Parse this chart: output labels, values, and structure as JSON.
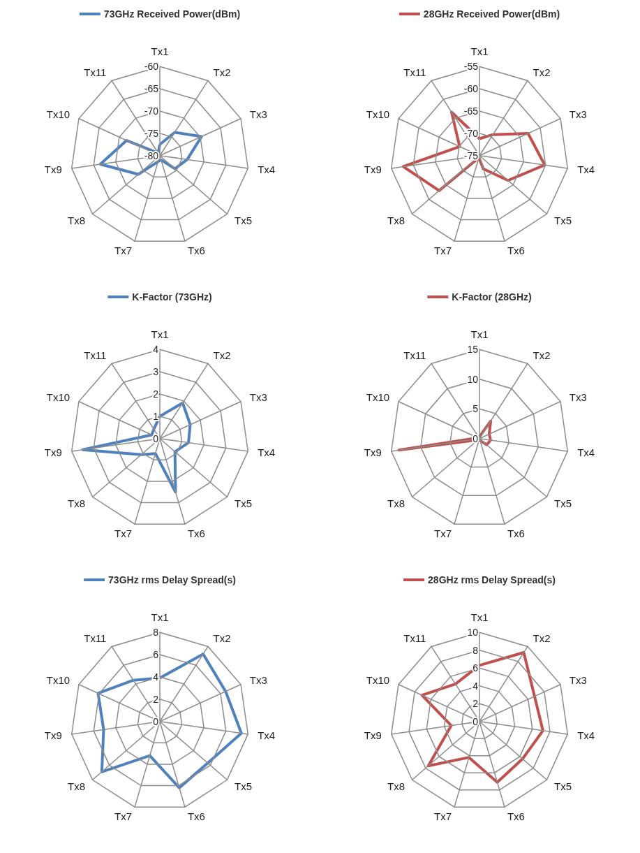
{
  "chart_data": [
    {
      "type": "radar",
      "categories": [
        "Tx1",
        "Tx2",
        "Tx3",
        "Tx4",
        "Tx5",
        "Tx6",
        "Tx7",
        "Tx8",
        "Tx9",
        "Tx10",
        "Tx11"
      ],
      "series": [
        {
          "name": "73GHz Received Power(dBm)",
          "color": "#4f81bd",
          "values": [
            -77.5,
            -73.8,
            -69.7,
            -73.8,
            -75.5,
            -79,
            -78.6,
            -73.6,
            -66.5,
            -71.8,
            -79.3
          ]
        }
      ],
      "ylim": [
        -80,
        -60
      ],
      "yticks": [
        -80,
        -75,
        -70,
        -65,
        -60
      ],
      "grid": true,
      "legend": "top",
      "marker": "none"
    },
    {
      "type": "radar",
      "categories": [
        "Tx1",
        "Tx2",
        "Tx3",
        "Tx4",
        "Tx5",
        "Tx6",
        "Tx7",
        "Tx8",
        "Tx9",
        "Tx10",
        "Tx11"
      ],
      "series": [
        {
          "name": "28GHz Received Power(dBm)",
          "color": "#c0504d",
          "values": [
            -71.2,
            -69.4,
            -63,
            -60.2,
            -66.5,
            -71.9,
            -74.5,
            -63,
            -57.7,
            -70.1,
            -63.4
          ]
        }
      ],
      "ylim": [
        -75,
        -55
      ],
      "yticks": [
        -75,
        -70,
        -65,
        -60,
        -55
      ],
      "grid": true,
      "legend": "top",
      "marker": "none"
    },
    {
      "type": "radar",
      "categories": [
        "Tx1",
        "Tx2",
        "Tx3",
        "Tx4",
        "Tx5",
        "Tx6",
        "Tx7",
        "Tx8",
        "Tx9",
        "Tx10",
        "Tx11"
      ],
      "series": [
        {
          "name": "K-Factor (73GHz)",
          "color": "#4f81bd",
          "values": [
            1,
            1.9,
            1.5,
            1.3,
            0.9,
            2.5,
            0.7,
            1.1,
            3.5,
            0.4,
            0.5
          ]
        }
      ],
      "ylim": [
        0,
        4
      ],
      "yticks": [
        0,
        1,
        2,
        3,
        4
      ],
      "grid": true,
      "legend": "top",
      "marker": "none"
    },
    {
      "type": "radar",
      "categories": [
        "Tx1",
        "Tx2",
        "Tx3",
        "Tx4",
        "Tx5",
        "Tx6",
        "Tx7",
        "Tx8",
        "Tx9",
        "Tx10",
        "Tx11"
      ],
      "series": [
        {
          "name": "K-Factor (28GHz)",
          "color": "#c0504d",
          "values": [
            0.3,
            3.5,
            1.8,
            1.9,
            1.6,
            0.3,
            0.3,
            0.3,
            13.7,
            0.3,
            0.3
          ]
        }
      ],
      "ylim": [
        0,
        15
      ],
      "yticks": [
        0,
        5,
        10,
        15
      ],
      "grid": true,
      "legend": "top",
      "marker": "none"
    },
    {
      "type": "radar",
      "categories": [
        "Tx1",
        "Tx2",
        "Tx3",
        "Tx4",
        "Tx5",
        "Tx6",
        "Tx7",
        "Tx8",
        "Tx9",
        "Tx10",
        "Tx11"
      ],
      "series": [
        {
          "name": "73GHz rms Delay Spread(s)",
          "color": "#4f81bd",
          "values": [
            3.9,
            7.2,
            6.5,
            7.4,
            5.7,
            6.2,
            3.2,
            6.9,
            5.1,
            6.1,
            4.4
          ]
        }
      ],
      "ylim": [
        0,
        8
      ],
      "yticks": [
        0,
        2,
        4,
        6,
        8
      ],
      "grid": true,
      "legend": "top",
      "marker": "none"
    },
    {
      "type": "radar",
      "categories": [
        "Tx1",
        "Tx2",
        "Tx3",
        "Tx4",
        "Tx5",
        "Tx6",
        "Tx7",
        "Tx8",
        "Tx9",
        "Tx10",
        "Tx11"
      ],
      "series": [
        {
          "name": "28GHz rms Delay Spread(s)",
          "color": "#c0504d",
          "values": [
            6.3,
            9.2,
            6.8,
            7.2,
            6.4,
            7.1,
            4.2,
            7.6,
            3.2,
            7.1,
            5
          ]
        }
      ],
      "ylim": [
        0,
        10
      ],
      "yticks": [
        0,
        2,
        4,
        6,
        8,
        10
      ],
      "grid": true,
      "legend": "top",
      "marker": "none"
    }
  ]
}
